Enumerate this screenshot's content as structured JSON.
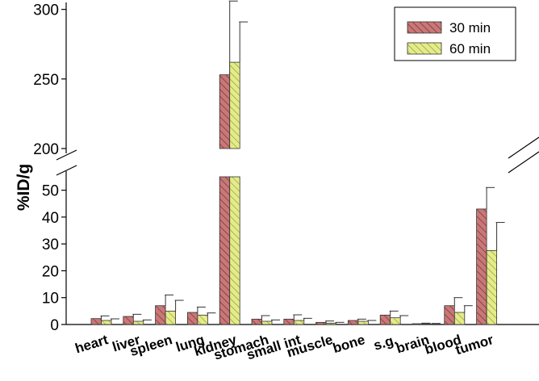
{
  "chart_data": {
    "type": "bar",
    "ylabel": "%ID/g",
    "xlabel": "",
    "categories": [
      "heart",
      "liver",
      "spleen",
      "lung",
      "kidney",
      "stomach",
      "small int",
      "muscle",
      "bone",
      "s.g.",
      "brain",
      "blood",
      "tumor"
    ],
    "series": [
      {
        "name": "30 min",
        "color": "#c87878",
        "hatch": "diagonal",
        "values": [
          2.2,
          3.0,
          7.0,
          4.5,
          253,
          2.0,
          2.0,
          0.8,
          1.5,
          3.5,
          0.3,
          7.0,
          43.0
        ],
        "errors": [
          1.0,
          0.8,
          4.0,
          2.0,
          53,
          1.3,
          1.6,
          0.5,
          0.5,
          1.5,
          0.2,
          3.0,
          8.0
        ]
      },
      {
        "name": "60 min",
        "color": "#e4ec8a",
        "hatch": "diagonal",
        "values": [
          1.5,
          1.2,
          5.0,
          3.5,
          262,
          1.2,
          1.5,
          0.5,
          1.2,
          2.5,
          0.2,
          4.5,
          27.5
        ],
        "errors": [
          0.6,
          0.5,
          4.0,
          0.8,
          29,
          0.5,
          0.8,
          0.3,
          0.3,
          0.8,
          0.2,
          2.5,
          10.5
        ]
      }
    ],
    "axis_break": {
      "from": 55,
      "to": 200
    },
    "lower_range": [
      0,
      55
    ],
    "upper_range": [
      200,
      305
    ],
    "lower_ticks": [
      0,
      10,
      20,
      30,
      40,
      50
    ],
    "upper_ticks": [
      200,
      250,
      300
    ],
    "legend_position": "top-right",
    "grid": false
  }
}
